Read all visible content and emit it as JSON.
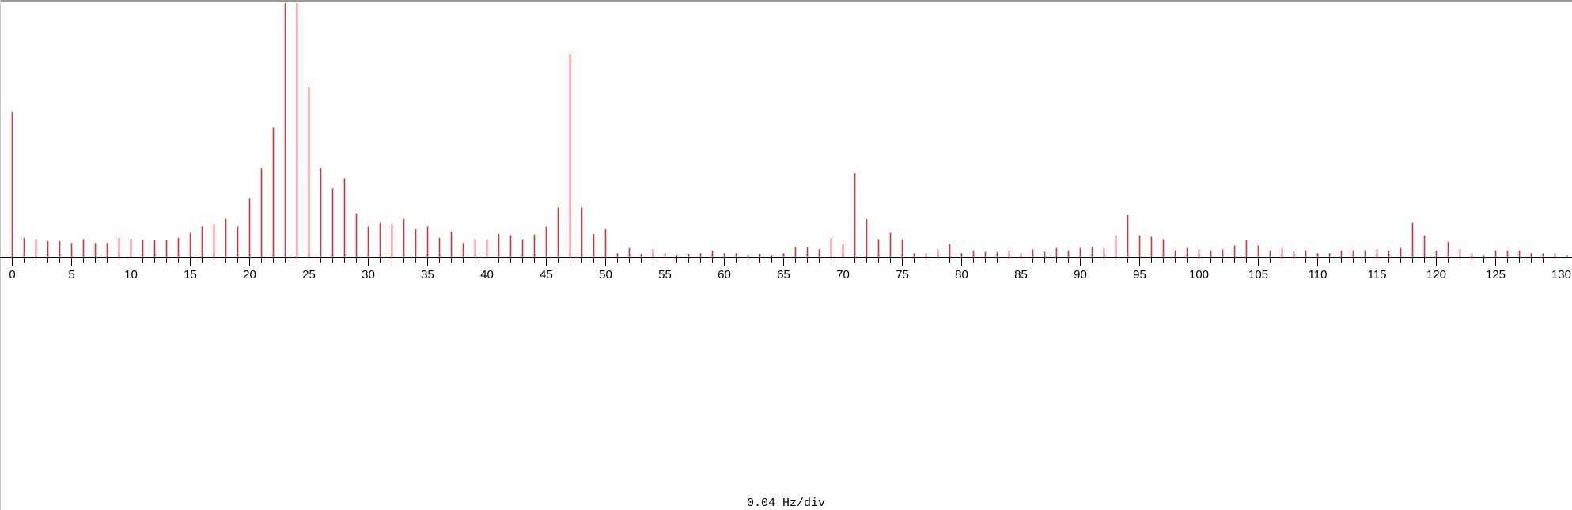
{
  "chart_data": {
    "type": "bar",
    "title": "",
    "xlabel": "0.04 Hz/div",
    "ylabel": "",
    "colors": {
      "bar": "#e03030",
      "axis": "#000000",
      "background": "#ffffff"
    },
    "xlim": [
      0,
      130
    ],
    "ylim": [
      0,
      100
    ],
    "grid": false,
    "x_ticks": [
      0,
      5,
      10,
      15,
      20,
      25,
      30,
      35,
      40,
      45,
      50,
      55,
      60,
      65,
      70,
      75,
      80,
      85,
      90,
      95,
      100,
      105,
      110,
      115,
      120,
      125,
      130
    ],
    "values": [
      57,
      7.5,
      7,
      6.2,
      6.2,
      5.5,
      7,
      5.5,
      5.5,
      7.5,
      7.2,
      6.8,
      6.5,
      6.5,
      7.5,
      9.5,
      12,
      13,
      15,
      12,
      23,
      35,
      51,
      100,
      100,
      67,
      35,
      27,
      31,
      17,
      12,
      13.5,
      13,
      15,
      11,
      12,
      7.5,
      10,
      5.5,
      7,
      7,
      9,
      8.5,
      7,
      8.8,
      12,
      19.5,
      80,
      19.5,
      9,
      11,
      1.5,
      3.5,
      1.2,
      3,
      1.5,
      1,
      1.2,
      1.5,
      2.5,
      1.5,
      1.5,
      0.5,
      1.2,
      1,
      1.5,
      4,
      4,
      3,
      7.5,
      5,
      33,
      15,
      7,
      9.5,
      7,
      1.5,
      1.5,
      3,
      5,
      1.5,
      2.5,
      2,
      2,
      2.5,
      1.5,
      3,
      2,
      3.5,
      2.5,
      3.5,
      4,
      3.5,
      8.5,
      16.5,
      8.5,
      8,
      7,
      2.5,
      3.5,
      3,
      2.5,
      3,
      4.5,
      6.5,
      4.5,
      2.5,
      3.5,
      2,
      2.5,
      1.5,
      1.5,
      2.5,
      2.5,
      2.5,
      3,
      2.5,
      3.5,
      13.5,
      8.5,
      2.5,
      6,
      3,
      1.5,
      0.5,
      2.5,
      2.5,
      2.5,
      1.5,
      1.5,
      1.5,
      0.5
    ]
  }
}
